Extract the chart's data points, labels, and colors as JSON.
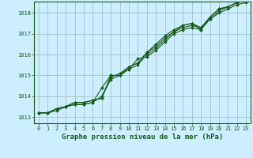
{
  "title": "Graphe pression niveau de la mer (hPa)",
  "background_color": "#cceeff",
  "plot_bg_color": "#cceeff",
  "grid_color": "#99bbbb",
  "line_color": "#1a5c1a",
  "marker_color": "#1a5c1a",
  "text_color": "#1a5c1a",
  "xlabel_color": "#1a5c1a",
  "ylim": [
    1012.7,
    1018.55
  ],
  "xlim": [
    -0.5,
    23.5
  ],
  "yticks": [
    1013,
    1014,
    1015,
    1016,
    1017,
    1018
  ],
  "xticks": [
    0,
    1,
    2,
    3,
    4,
    5,
    6,
    7,
    8,
    9,
    10,
    11,
    12,
    13,
    14,
    15,
    16,
    17,
    18,
    19,
    20,
    21,
    22,
    23
  ],
  "series": [
    [
      1013.2,
      1013.2,
      1013.3,
      1013.5,
      1013.6,
      1013.6,
      1013.7,
      1014.0,
      1014.8,
      1015.0,
      1015.3,
      1015.8,
      1015.9,
      1016.2,
      1016.6,
      1017.0,
      1017.2,
      1017.3,
      1017.2,
      1017.7,
      1018.0,
      1018.2,
      1018.4,
      1018.5
    ],
    [
      1013.2,
      1013.2,
      1013.4,
      1013.5,
      1013.6,
      1013.6,
      1013.7,
      1014.4,
      1015.0,
      1015.0,
      1015.3,
      1015.5,
      1016.0,
      1016.3,
      1016.7,
      1017.1,
      1017.3,
      1017.4,
      1017.3,
      1017.7,
      1018.1,
      1018.3,
      1018.5,
      1018.6
    ],
    [
      1013.2,
      1013.2,
      1013.4,
      1013.5,
      1013.7,
      1013.7,
      1013.8,
      1013.9,
      1014.9,
      1015.1,
      1015.4,
      1015.6,
      1016.1,
      1016.4,
      1016.8,
      1017.1,
      1017.4,
      1017.5,
      1017.2,
      1017.8,
      1018.2,
      1018.3,
      1018.5,
      1018.6
    ],
    [
      1013.2,
      1013.2,
      1013.4,
      1013.5,
      1013.7,
      1013.7,
      1013.8,
      1013.9,
      1015.0,
      1015.0,
      1015.4,
      1015.6,
      1016.1,
      1016.5,
      1016.9,
      1017.2,
      1017.4,
      1017.5,
      1017.3,
      1017.8,
      1018.2,
      1018.3,
      1018.5,
      1018.7
    ]
  ],
  "title_fontsize": 6.5,
  "tick_fontsize": 5.0,
  "marker_size": 2.0,
  "line_width": 0.8
}
